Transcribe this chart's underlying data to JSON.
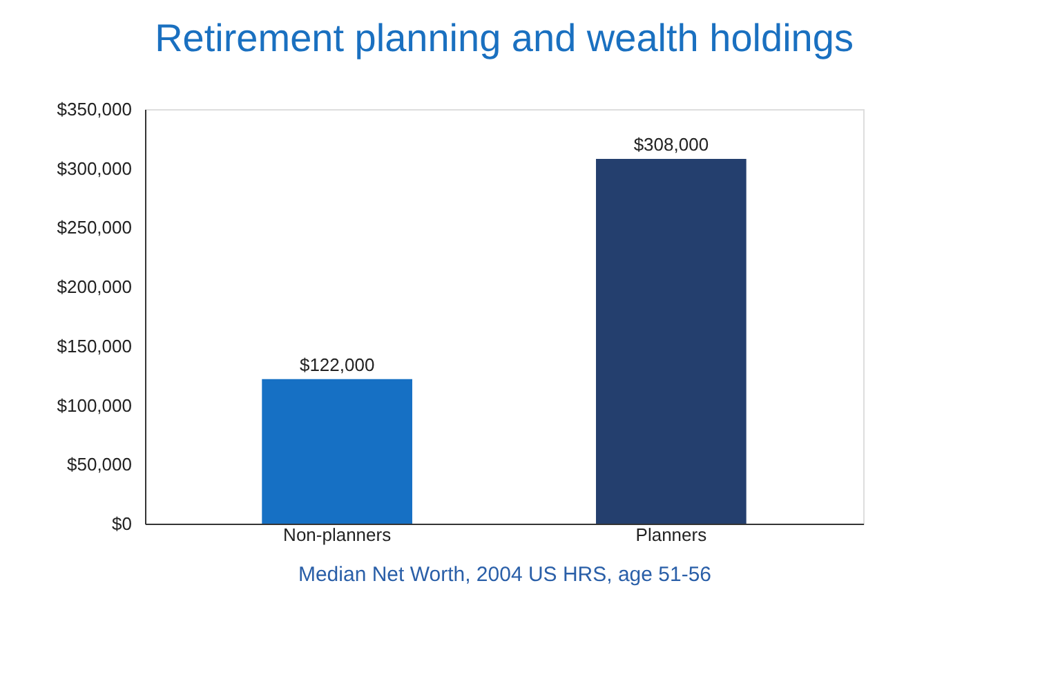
{
  "chart_data": {
    "type": "bar",
    "title": "Retirement planning and wealth holdings",
    "xlabel": "Median Net Worth, 2004 US HRS, age 51-56",
    "categories": [
      "Non-planners",
      "Planners"
    ],
    "values": [
      122000,
      308000
    ],
    "value_labels": [
      "$122,000",
      "$308,000"
    ],
    "colors": [
      "#1670c4",
      "#243f6e"
    ],
    "ylim": [
      0,
      350000
    ],
    "yticks": [
      {
        "value": 0,
        "label": "$0"
      },
      {
        "value": 50000,
        "label": "$50,000"
      },
      {
        "value": 100000,
        "label": "$100,000"
      },
      {
        "value": 150000,
        "label": "$150,000"
      },
      {
        "value": 200000,
        "label": "$200,000"
      },
      {
        "value": 250000,
        "label": "$250,000"
      },
      {
        "value": 300000,
        "label": "$300,000"
      },
      {
        "value": 350000,
        "label": "$350,000"
      }
    ],
    "grid": false
  }
}
